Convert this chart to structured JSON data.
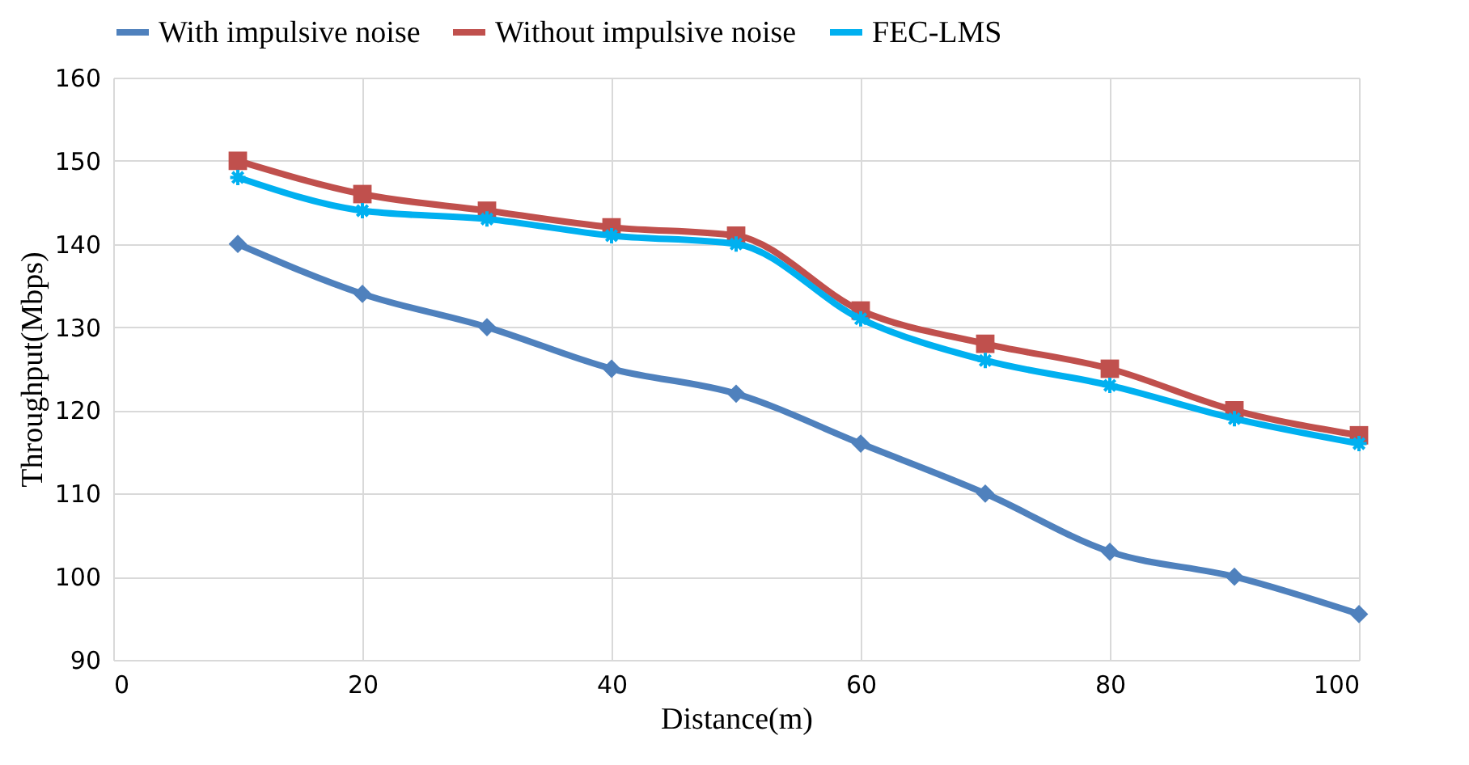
{
  "chart_data": {
    "type": "line",
    "xlabel": "Distance(m)",
    "ylabel": "Throughput(Mbps)",
    "x": [
      10,
      20,
      30,
      40,
      50,
      60,
      70,
      80,
      90,
      100
    ],
    "series": [
      {
        "name": "With impulsive noise",
        "color": "#4f81bd",
        "marker": "diamond",
        "values": [
          140,
          134,
          130,
          125,
          122,
          116,
          110,
          103,
          100,
          95.5
        ]
      },
      {
        "name": "Without impulsive noise",
        "color": "#c0504d",
        "marker": "square",
        "values": [
          150,
          146,
          144,
          142,
          141,
          132,
          128,
          125,
          120,
          117
        ]
      },
      {
        "name": "FEC-LMS",
        "color": "#00b0f0",
        "marker": "cross",
        "values": [
          148,
          144,
          143,
          141,
          140,
          131,
          126,
          123,
          119,
          116
        ]
      }
    ],
    "xlim": [
      0,
      100
    ],
    "xticks": [
      0,
      20,
      40,
      60,
      80,
      100
    ],
    "ylim": [
      90,
      160
    ],
    "yticks": [
      90,
      100,
      110,
      120,
      130,
      140,
      150,
      160
    ],
    "grid": true,
    "legend": "top",
    "line_style": "solid"
  }
}
